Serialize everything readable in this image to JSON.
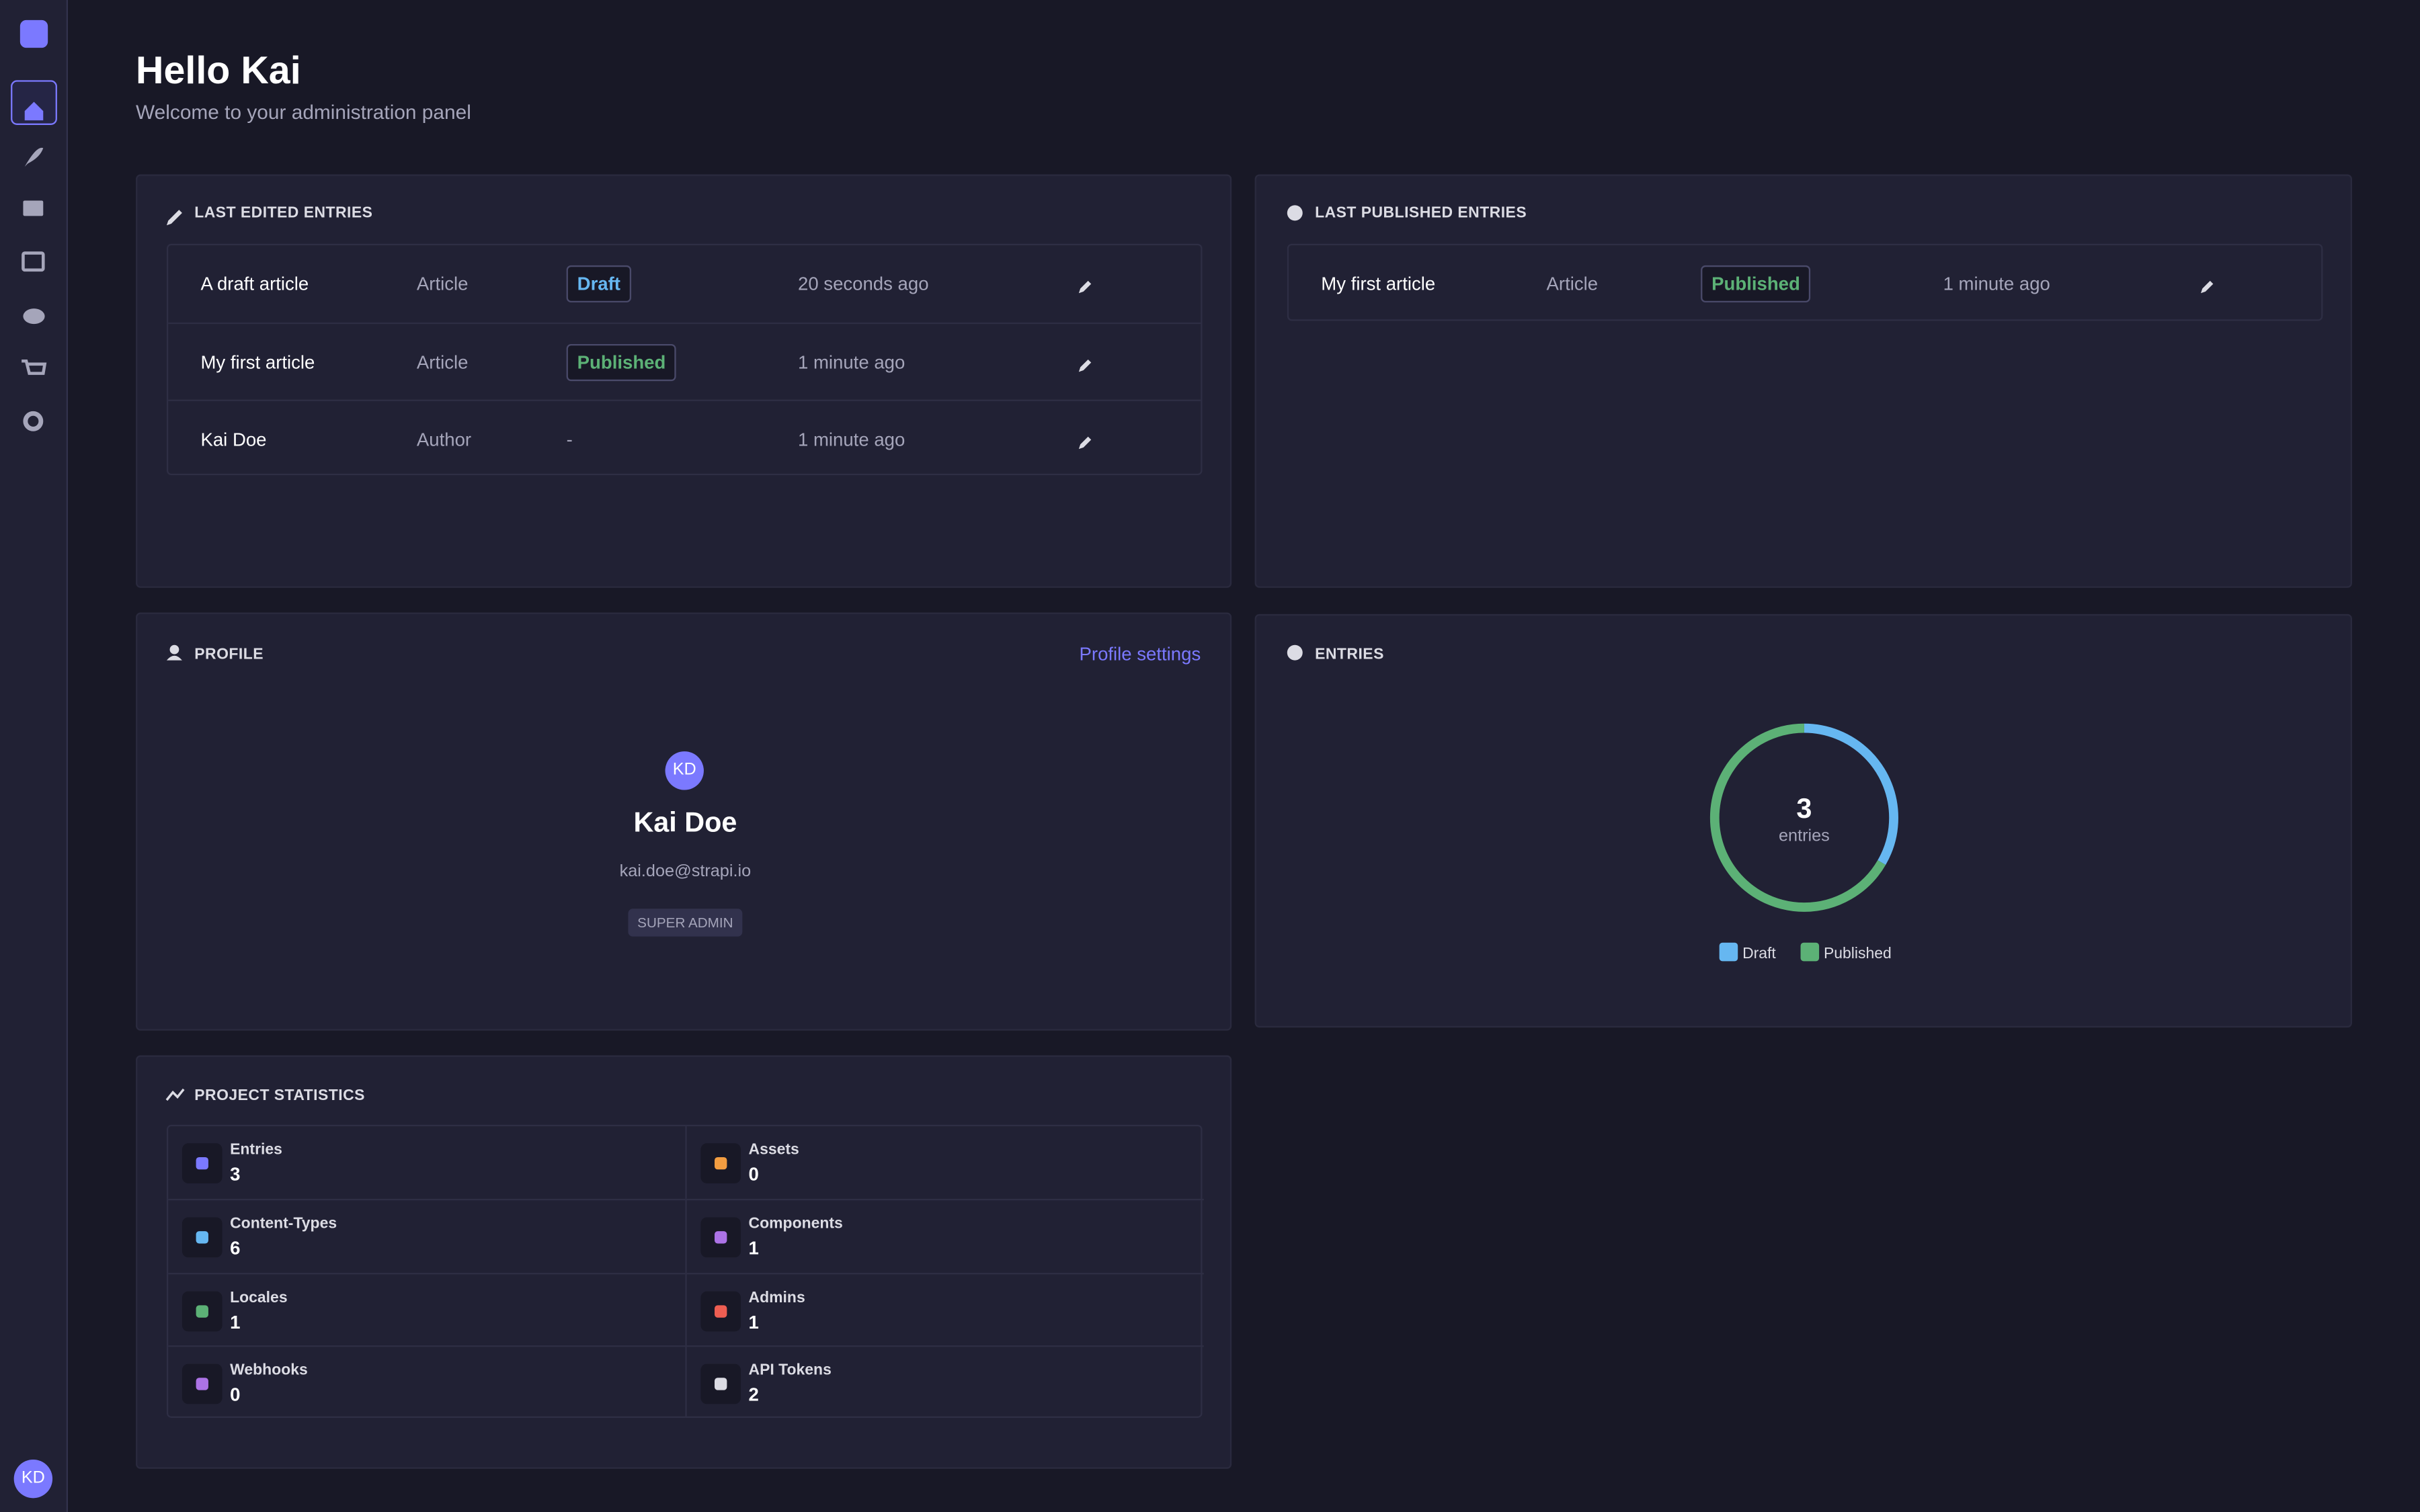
{
  "sidebar": {
    "avatar": "KD"
  },
  "header": {
    "title": "Hello Kai",
    "subtitle": "Welcome to your administration panel"
  },
  "last_edited": {
    "title": "LAST EDITED ENTRIES",
    "rows": [
      {
        "name": "A draft article",
        "type": "Article",
        "status": "Draft",
        "status_color": "#66b7f1",
        "time": "20 seconds ago"
      },
      {
        "name": "My first article",
        "type": "Article",
        "status": "Published",
        "status_color": "#5cb176",
        "time": "1 minute ago"
      },
      {
        "name": "Kai Doe",
        "type": "Author",
        "status": "-",
        "time": "1 minute ago"
      }
    ]
  },
  "last_published": {
    "title": "LAST PUBLISHED ENTRIES",
    "rows": [
      {
        "name": "My first article",
        "type": "Article",
        "status": "Published",
        "status_color": "#5cb176",
        "time": "1 minute ago"
      }
    ]
  },
  "profile": {
    "title": "PROFILE",
    "link": "Profile settings",
    "initials": "KD",
    "name": "Kai Doe",
    "email": "kai.doe@strapi.io",
    "role": "SUPER ADMIN"
  },
  "chart_data": {
    "type": "donut",
    "title": "ENTRIES",
    "categories": [
      "Draft",
      "Published"
    ],
    "values": [
      1,
      2
    ],
    "colors": [
      "#66b7f1",
      "#5cb176"
    ],
    "center_value": 3,
    "center_label": "entries"
  },
  "statistics": {
    "title": "PROJECT STATISTICS",
    "items": [
      {
        "label": "Entries",
        "value": 3
      },
      {
        "label": "Assets",
        "value": 0
      },
      {
        "label": "Content-Types",
        "value": 6
      },
      {
        "label": "Components",
        "value": 1
      },
      {
        "label": "Locales",
        "value": 1
      },
      {
        "label": "Admins",
        "value": 1
      },
      {
        "label": "Webhooks",
        "value": 0
      },
      {
        "label": "API Tokens",
        "value": 2
      }
    ]
  }
}
